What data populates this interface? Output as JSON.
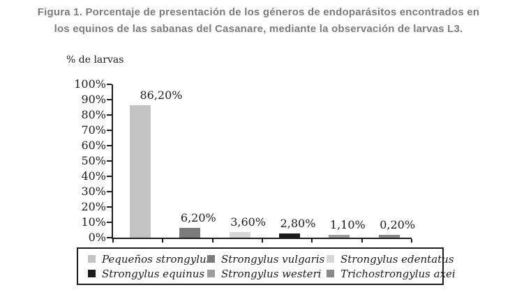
{
  "figure": {
    "title_line1": "Figura 1. Porcentaje de presentación de los géneros de endoparásitos encontrados en",
    "title_line2": "los equinos de las sabanas del Casanare, mediante la observación de larvas L3.",
    "title_color": "#7b7b7b"
  },
  "chart_data": {
    "type": "bar",
    "title": "Figura 1. Porcentaje de presentación de los géneros de endoparásitos encontrados en los equinos de las sabanas del Casanare, mediante la observación de larvas L3.",
    "ylabel": "% de larvas",
    "xlabel": "",
    "categories": [
      "Pequeños strongylus",
      "Strongylus vulgaris",
      "Strongylus edentatus",
      "Strongylus equinus",
      "Strongylus westeri",
      "Trichostrongylus axei"
    ],
    "values": [
      86.2,
      6.2,
      3.6,
      2.8,
      1.1,
      0.2
    ],
    "value_labels": [
      "86,20%",
      "6,20%",
      "3,60%",
      "2,80%",
      "1,10%",
      "0,20%"
    ],
    "bar_colors": [
      "#c3c3c3",
      "#7b7b7b",
      "#d8d8d8",
      "#1b1b1b",
      "#9d9d9d",
      "#8a8a8a"
    ],
    "y_ticks": [
      "100%",
      "90%",
      "80%",
      "70%",
      "60%",
      "50%",
      "40%",
      "30%",
      "20%",
      "10%",
      "0%"
    ],
    "ylim": [
      0,
      100
    ],
    "grid": false,
    "legend_position": "bottom",
    "axis_color": "#1c1c1c"
  }
}
